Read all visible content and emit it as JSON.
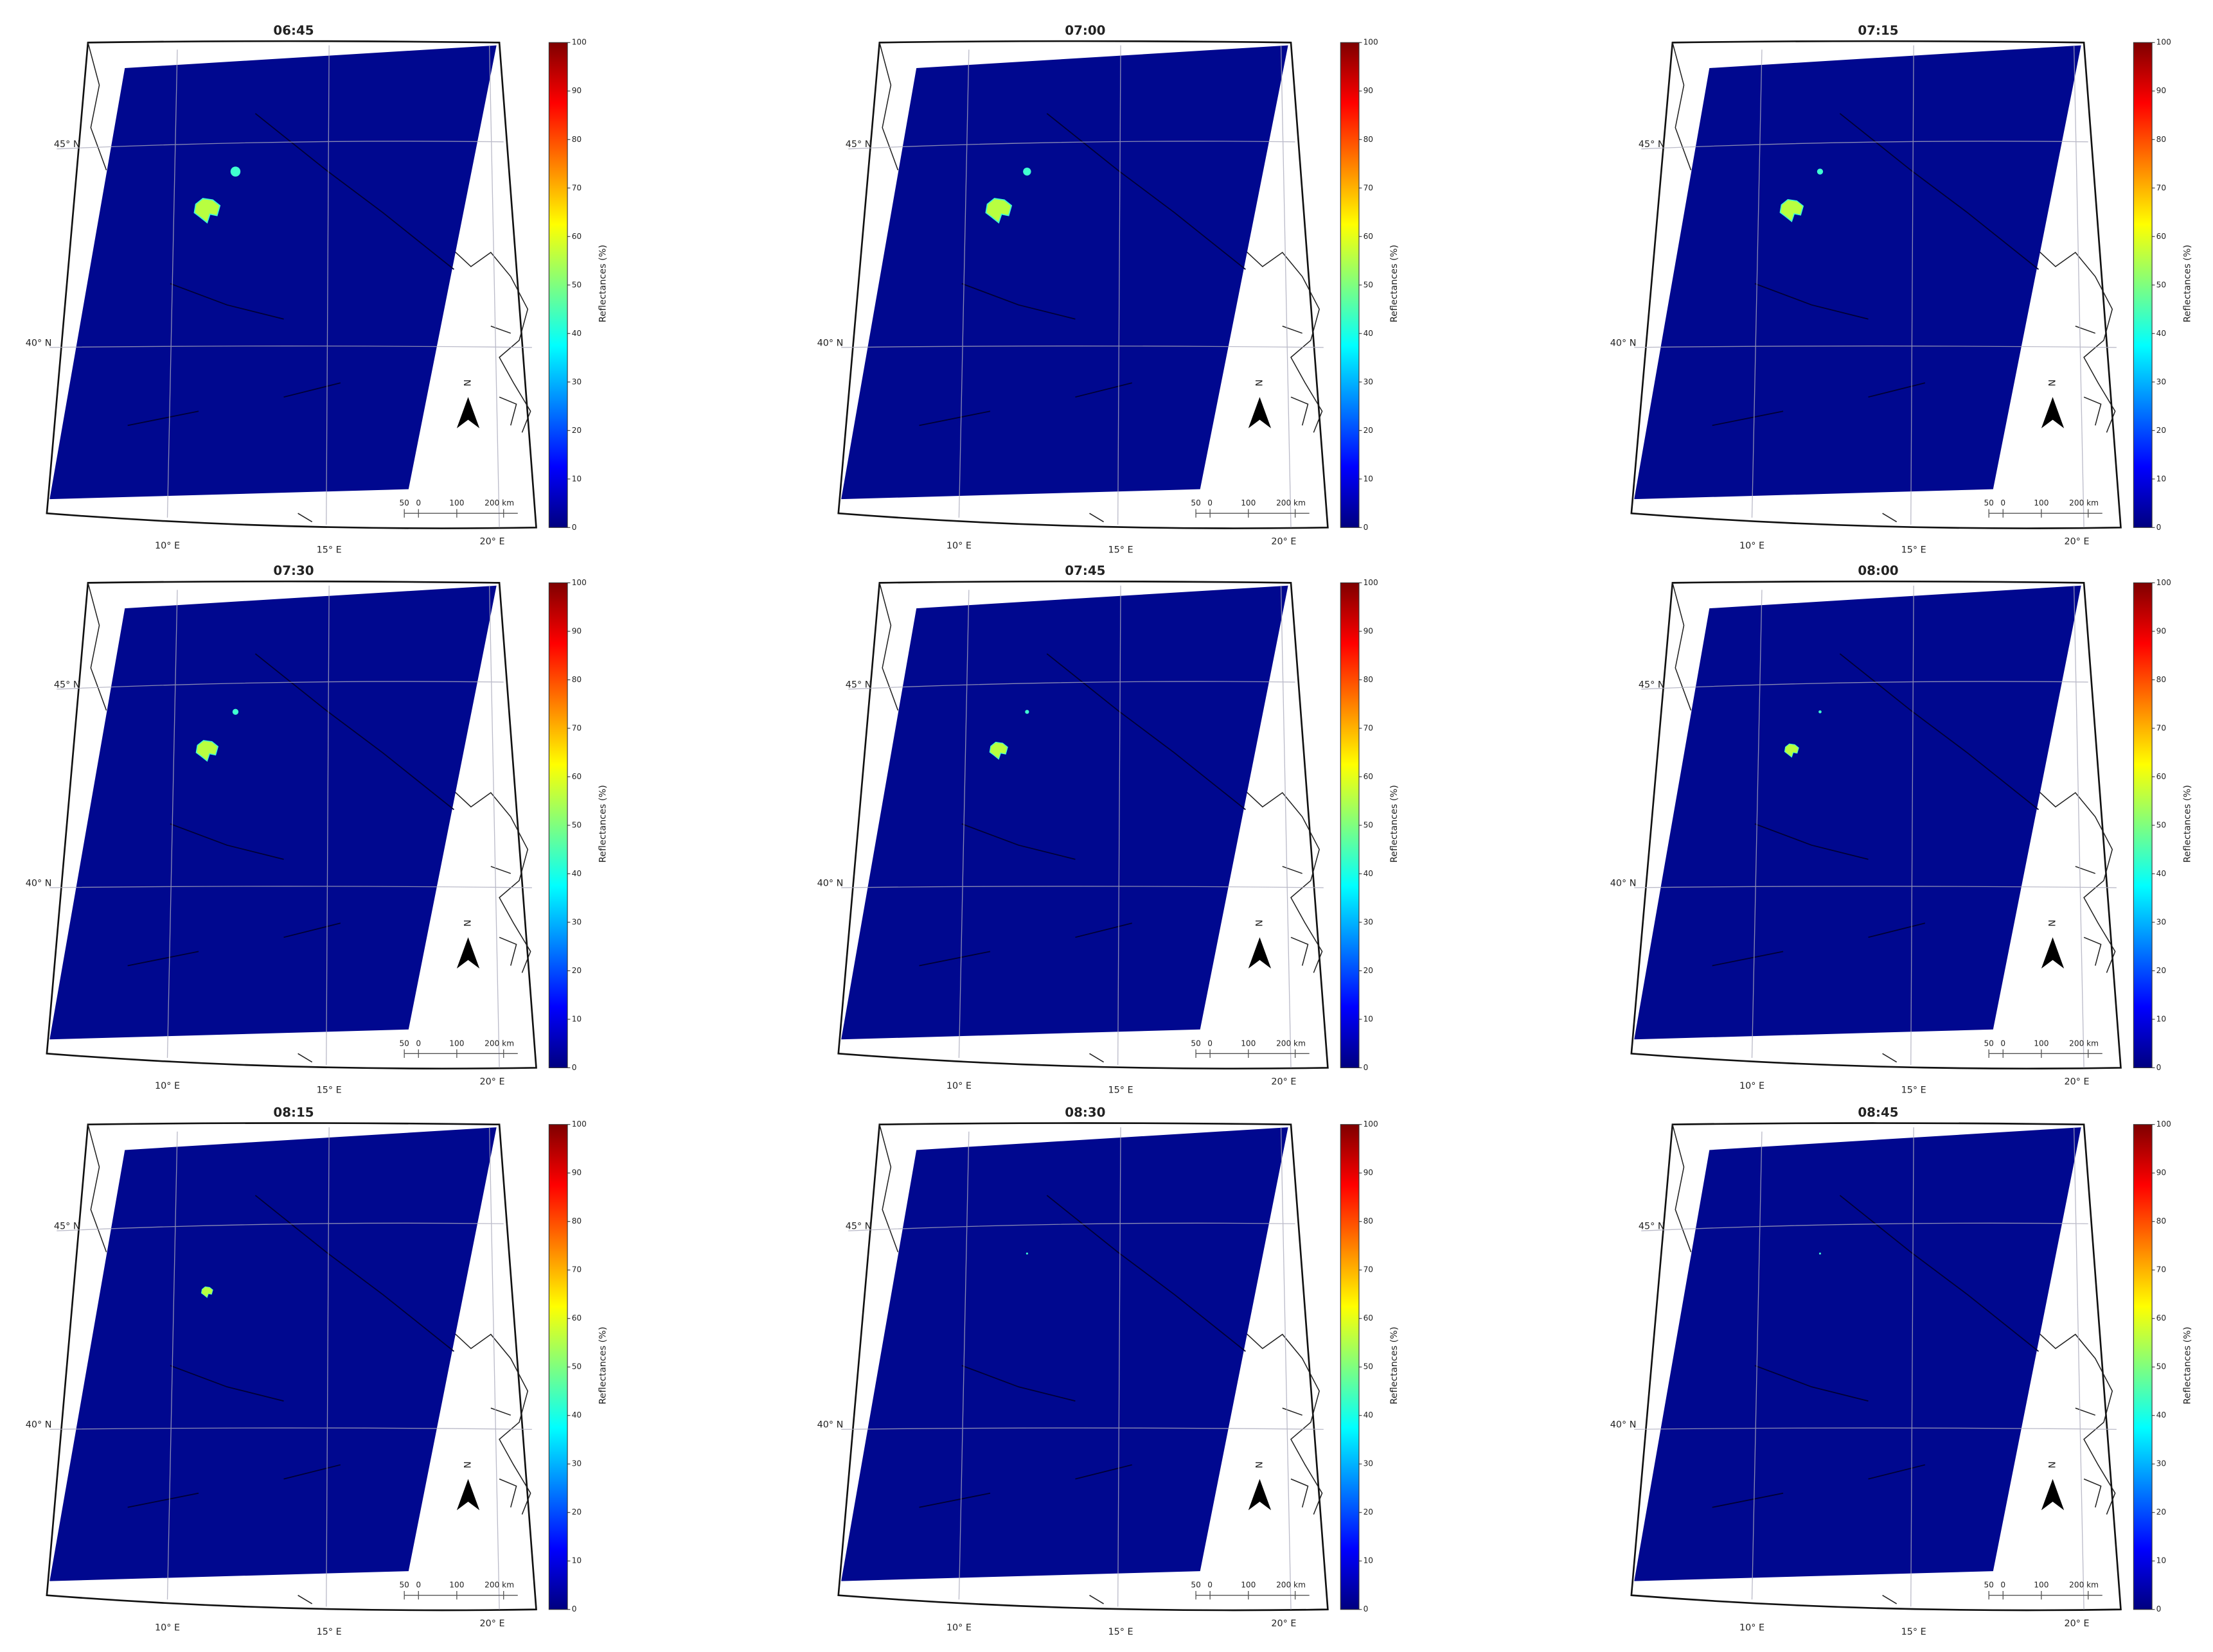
{
  "panels": [
    {
      "title": "06:45"
    },
    {
      "title": "07:00"
    },
    {
      "title": "07:15"
    },
    {
      "title": "07:30"
    },
    {
      "title": "07:45"
    },
    {
      "title": "08:00"
    },
    {
      "title": "08:15"
    },
    {
      "title": "08:30"
    },
    {
      "title": "08:45"
    }
  ],
  "colorbar": {
    "label": "Reflectances (%)",
    "ticks": [
      0,
      10,
      20,
      30,
      40,
      50,
      60,
      70,
      80,
      90,
      100
    ]
  },
  "lat_labels": [
    "45° N",
    "40° N"
  ],
  "lon_labels": [
    "10° E",
    "15° E",
    "20° E"
  ],
  "scale_bar": [
    "50",
    "0",
    "100",
    "200 km"
  ],
  "north": "N"
}
